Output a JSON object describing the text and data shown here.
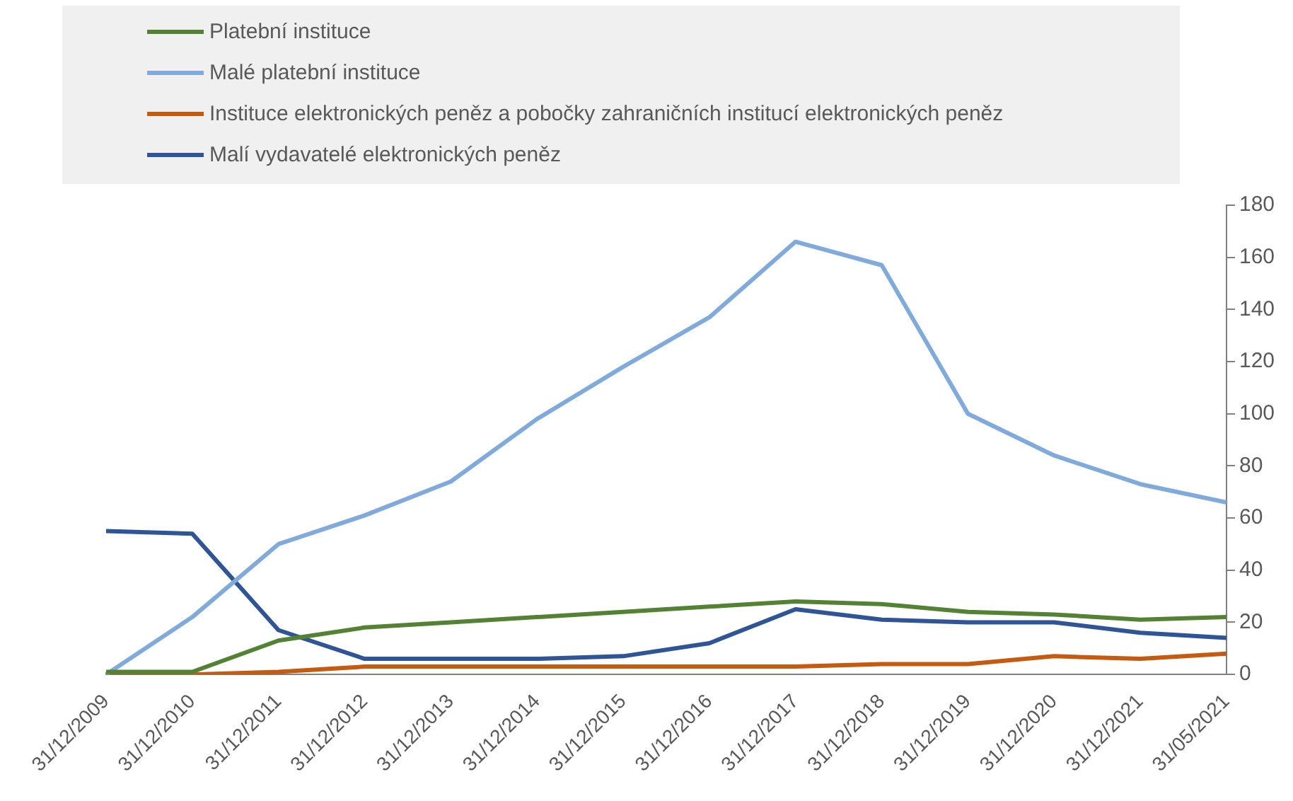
{
  "chart_data": {
    "type": "line",
    "categories": [
      "31/12/2009",
      "31/12/2010",
      "31/12/2011",
      "31/12/2012",
      "31/12/2013",
      "31/12/2014",
      "31/12/2015",
      "31/12/2016",
      "31/12/2017",
      "31/12/2018",
      "31/12/2019",
      "31/12/2020",
      "31/12/2021",
      "31/05/2021"
    ],
    "series": [
      {
        "name": "Platební instituce",
        "color": "#548235",
        "values": [
          1,
          1,
          13,
          18,
          20,
          22,
          24,
          26,
          28,
          27,
          24,
          23,
          21,
          22
        ]
      },
      {
        "name": "Malé platební instituce",
        "color": "#7faadb",
        "values": [
          0,
          22,
          50,
          61,
          74,
          98,
          118,
          137,
          166,
          157,
          100,
          84,
          73,
          66
        ]
      },
      {
        "name": "Instituce elektronických peněz a pobočky zahraničních institucí elektronických peněz",
        "color": "#c55a11",
        "values": [
          0,
          0,
          1,
          3,
          3,
          3,
          3,
          3,
          3,
          4,
          4,
          7,
          6,
          8
        ]
      },
      {
        "name": "Malí vydavatelé elektronických peněz",
        "color": "#2f5597",
        "values": [
          55,
          54,
          17,
          6,
          6,
          6,
          7,
          12,
          25,
          21,
          20,
          20,
          16,
          14
        ]
      }
    ],
    "ylim": [
      0,
      180
    ],
    "yticks": [
      0,
      20,
      40,
      60,
      80,
      100,
      120,
      140,
      160,
      180
    ],
    "grid": false,
    "legend": "top left",
    "marker": "none",
    "line_style": "solid"
  }
}
